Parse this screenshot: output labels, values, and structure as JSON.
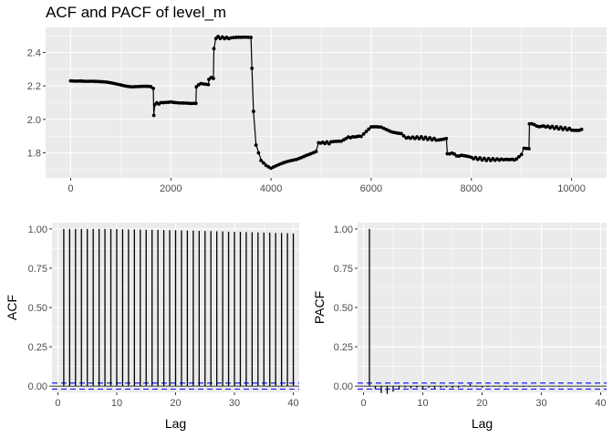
{
  "title": "ACF and PACF of level_m",
  "chart_data": [
    {
      "type": "line",
      "name": "level_m series",
      "title": "ACF and PACF of level_m",
      "xlabel": "",
      "ylabel": "",
      "xlim": [
        -500,
        10700
      ],
      "ylim": [
        1.65,
        2.55
      ],
      "xticks": [
        0,
        2000,
        4000,
        6000,
        8000,
        10000
      ],
      "yticks": [
        1.8,
        2.0,
        2.2,
        2.4
      ],
      "ytick_labels": [
        "1.8",
        "2.0",
        "2.2",
        "2.4"
      ],
      "grid": true,
      "markers": true,
      "points": [
        [
          0,
          2.23
        ],
        [
          200,
          2.235
        ],
        [
          400,
          2.23
        ],
        [
          600,
          2.22
        ],
        [
          800,
          2.215
        ],
        [
          1000,
          2.21
        ],
        [
          1200,
          2.2
        ],
        [
          1400,
          2.195
        ],
        [
          1600,
          2.19
        ],
        [
          1650,
          2.18
        ],
        [
          1660,
          2.03
        ],
        [
          1680,
          2.09
        ],
        [
          1800,
          2.1
        ],
        [
          2000,
          2.11
        ],
        [
          2200,
          2.1
        ],
        [
          2400,
          2.09
        ],
        [
          2500,
          2.09
        ],
        [
          2510,
          2.2
        ],
        [
          2600,
          2.21
        ],
        [
          2750,
          2.21
        ],
        [
          2760,
          2.24
        ],
        [
          2850,
          2.25
        ],
        [
          2860,
          2.42
        ],
        [
          2900,
          2.49
        ],
        [
          3200,
          2.485
        ],
        [
          3400,
          2.485
        ],
        [
          3600,
          2.49
        ],
        [
          3620,
          2.3
        ],
        [
          3650,
          2.05
        ],
        [
          3700,
          1.85
        ],
        [
          3800,
          1.76
        ],
        [
          3900,
          1.73
        ],
        [
          4000,
          1.71
        ],
        [
          4100,
          1.72
        ],
        [
          4300,
          1.74
        ],
        [
          4500,
          1.76
        ],
        [
          4700,
          1.79
        ],
        [
          4900,
          1.81
        ],
        [
          4950,
          1.86
        ],
        [
          5200,
          1.86
        ],
        [
          5400,
          1.87
        ],
        [
          5500,
          1.89
        ],
        [
          5800,
          1.9
        ],
        [
          6000,
          1.95
        ],
        [
          6200,
          1.95
        ],
        [
          6400,
          1.93
        ],
        [
          6600,
          1.92
        ],
        [
          6700,
          1.89
        ],
        [
          7000,
          1.89
        ],
        [
          7300,
          1.88
        ],
        [
          7500,
          1.89
        ],
        [
          7520,
          1.8
        ],
        [
          7800,
          1.78
        ],
        [
          8000,
          1.77
        ],
        [
          8300,
          1.76
        ],
        [
          8600,
          1.76
        ],
        [
          8900,
          1.76
        ],
        [
          9000,
          1.79
        ],
        [
          9050,
          1.83
        ],
        [
          9150,
          1.83
        ],
        [
          9160,
          1.97
        ],
        [
          9400,
          1.96
        ],
        [
          9700,
          1.95
        ],
        [
          10000,
          1.94
        ],
        [
          10200,
          1.94
        ]
      ]
    },
    {
      "type": "bar",
      "name": "ACF",
      "xlabel": "Lag",
      "ylabel": "ACF",
      "xlim": [
        -1,
        41
      ],
      "ylim": [
        -0.04,
        1.04
      ],
      "xticks": [
        0,
        10,
        20,
        30,
        40
      ],
      "yticks": [
        0.0,
        0.25,
        0.5,
        0.75,
        1.0
      ],
      "ytick_labels": [
        "0.00",
        "0.25",
        "0.50",
        "0.75",
        "1.00"
      ],
      "lags": [
        1,
        2,
        3,
        4,
        5,
        6,
        7,
        8,
        9,
        10,
        11,
        12,
        13,
        14,
        15,
        16,
        17,
        18,
        19,
        20,
        21,
        22,
        23,
        24,
        25,
        26,
        27,
        28,
        29,
        30,
        31,
        32,
        33,
        34,
        35,
        36,
        37,
        38,
        39,
        40
      ],
      "values": [
        1.0,
        1.0,
        1.0,
        1.0,
        1.0,
        1.0,
        1.0,
        1.0,
        0.999,
        0.999,
        0.998,
        0.997,
        0.997,
        0.996,
        0.995,
        0.995,
        0.994,
        0.993,
        0.992,
        0.992,
        0.991,
        0.99,
        0.989,
        0.988,
        0.987,
        0.986,
        0.985,
        0.984,
        0.983,
        0.982,
        0.981,
        0.98,
        0.979,
        0.978,
        0.977,
        0.976,
        0.975,
        0.974,
        0.973,
        0.972
      ],
      "conf_bound": 0.0194,
      "grid": true
    },
    {
      "type": "bar",
      "name": "PACF",
      "xlabel": "Lag",
      "ylabel": "PACF",
      "xlim": [
        -1,
        41
      ],
      "ylim": [
        -0.04,
        1.04
      ],
      "xticks": [
        0,
        10,
        20,
        30,
        40
      ],
      "yticks": [
        0.0,
        0.25,
        0.5,
        0.75,
        1.0
      ],
      "ytick_labels": [
        "0.00",
        "0.25",
        "0.50",
        "0.75",
        "1.00"
      ],
      "lags": [
        1,
        2,
        3,
        4,
        5,
        6,
        7,
        8,
        9,
        10,
        11,
        12,
        13,
        14,
        15,
        16,
        17,
        18,
        19,
        20,
        21,
        22,
        23,
        24,
        25,
        26,
        27,
        28,
        29,
        30,
        31,
        32,
        33,
        34,
        35,
        36,
        37,
        38,
        39,
        40
      ],
      "values": [
        1.0,
        -0.02,
        -0.045,
        -0.05,
        -0.035,
        -0.02,
        -0.01,
        -0.015,
        -0.01,
        -0.02,
        -0.01,
        -0.015,
        -0.01,
        -0.008,
        -0.012,
        -0.01,
        0.005,
        0.015,
        -0.005,
        -0.01,
        -0.006,
        -0.004,
        -0.005,
        -0.006,
        -0.004,
        -0.003,
        -0.005,
        -0.004,
        -0.003,
        -0.004,
        -0.002,
        -0.003,
        -0.004,
        -0.002,
        -0.003,
        -0.002,
        -0.002,
        -0.003,
        -0.002,
        -0.002
      ],
      "conf_bound": 0.0194,
      "grid": true
    }
  ]
}
